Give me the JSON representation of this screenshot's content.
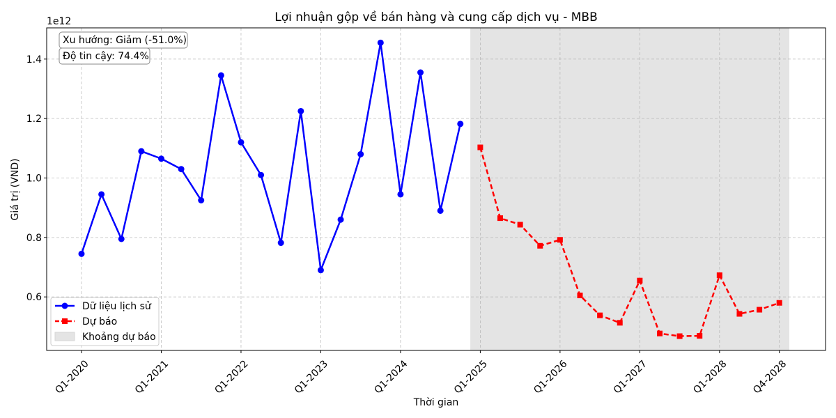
{
  "chart_data": {
    "type": "line",
    "title": "Lợi nhuận gộp về bán hàng và cung cấp dịch vụ - MBB",
    "xlabel": "Thời gian",
    "ylabel": "Giá trị (VND)",
    "y_offset_label": "1e12",
    "ylim": [
      0.42,
      1.505
    ],
    "y_ticks": [
      0.6,
      0.8,
      1.0,
      1.2,
      1.4
    ],
    "y_tick_labels": [
      "0.6",
      "0.8",
      "1.0",
      "1.2",
      "1.4"
    ],
    "x_ticks": [
      "Q1-2020",
      "Q1-2021",
      "Q1-2022",
      "Q1-2023",
      "Q1-2024",
      "Q1-2025",
      "Q1-2026",
      "Q1-2027",
      "Q1-2028",
      "Q4-2028"
    ],
    "grid": true,
    "legend_position": "bottom-left",
    "annotations": [
      "Xu hướng: Giảm (-51.0%)",
      "Độ tin cậy: 74.4%"
    ],
    "forecast_region": {
      "label": "Khoảng dự báo",
      "color": "#e4e4e4",
      "start": "Q1-2025",
      "end": "Q4-2028"
    },
    "series": [
      {
        "name": "Dữ liệu lịch sử",
        "color": "#0000ff",
        "marker": "circle",
        "style": "solid",
        "x": [
          "Q1-2020",
          "Q2-2020",
          "Q3-2020",
          "Q4-2020",
          "Q1-2021",
          "Q2-2021",
          "Q3-2021",
          "Q4-2021",
          "Q1-2022",
          "Q2-2022",
          "Q3-2022",
          "Q4-2022",
          "Q1-2023",
          "Q2-2023",
          "Q3-2023",
          "Q4-2023",
          "Q1-2024",
          "Q2-2024",
          "Q3-2024",
          "Q4-2024"
        ],
        "values": [
          0.745,
          0.945,
          0.795,
          1.09,
          1.065,
          1.03,
          0.925,
          1.345,
          1.12,
          1.01,
          0.782,
          1.225,
          0.69,
          0.86,
          1.08,
          1.455,
          0.945,
          1.355,
          0.89,
          1.182
        ]
      },
      {
        "name": "Dự báo",
        "color": "#ff0000",
        "marker": "square",
        "style": "dashed",
        "x": [
          "Q1-2025",
          "Q2-2025",
          "Q3-2025",
          "Q4-2025",
          "Q1-2026",
          "Q2-2026",
          "Q3-2026",
          "Q4-2026",
          "Q1-2027",
          "Q2-2027",
          "Q3-2027",
          "Q4-2027",
          "Q1-2028",
          "Q2-2028",
          "Q3-2028",
          "Q4-2028"
        ],
        "values": [
          1.103,
          0.865,
          0.843,
          0.772,
          0.792,
          0.605,
          0.538,
          0.513,
          0.655,
          0.477,
          0.468,
          0.469,
          0.673,
          0.543,
          0.557,
          0.58
        ]
      }
    ]
  }
}
